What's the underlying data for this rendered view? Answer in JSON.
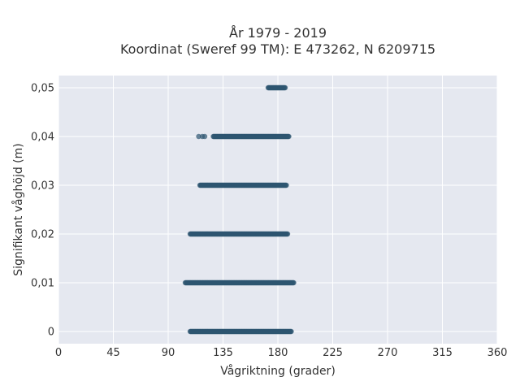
{
  "chart_data": {
    "type": "scatter",
    "title": "År 1979 - 2019",
    "subtitle": "Koordinat (Sweref 99 TM): E 473262, N 6209715",
    "xlabel": "Vågriktning (grader)",
    "ylabel": "Signifikant våghöjd (m)",
    "xlim": [
      0,
      360
    ],
    "ylim": [
      -0.0025,
      0.0525
    ],
    "xticks": [
      0,
      45,
      90,
      135,
      180,
      225,
      270,
      315,
      360
    ],
    "xtick_labels": [
      "0",
      "45",
      "90",
      "135",
      "180",
      "225",
      "270",
      "315",
      "360"
    ],
    "yticks": [
      0,
      0.01,
      0.02,
      0.03,
      0.04,
      0.05
    ],
    "ytick_labels": [
      "0",
      "0,01",
      "0,02",
      "0,03",
      "0,04",
      "0,05"
    ],
    "grid": true,
    "marker_color": "#2e5570",
    "plot_background": "#e5e8f0",
    "bands": [
      {
        "y": 0.0,
        "x_min": 108,
        "x_max": 191,
        "extra_x": []
      },
      {
        "y": 0.01,
        "x_min": 104,
        "x_max": 193,
        "extra_x": []
      },
      {
        "y": 0.02,
        "x_min": 108,
        "x_max": 188,
        "extra_x": []
      },
      {
        "y": 0.03,
        "x_min": 116,
        "x_max": 187,
        "extra_x": []
      },
      {
        "y": 0.04,
        "x_min": 127,
        "x_max": 189,
        "extra_x": [
          115,
          118,
          120
        ]
      },
      {
        "y": 0.05,
        "x_min": 172,
        "x_max": 186,
        "extra_x": []
      }
    ]
  }
}
